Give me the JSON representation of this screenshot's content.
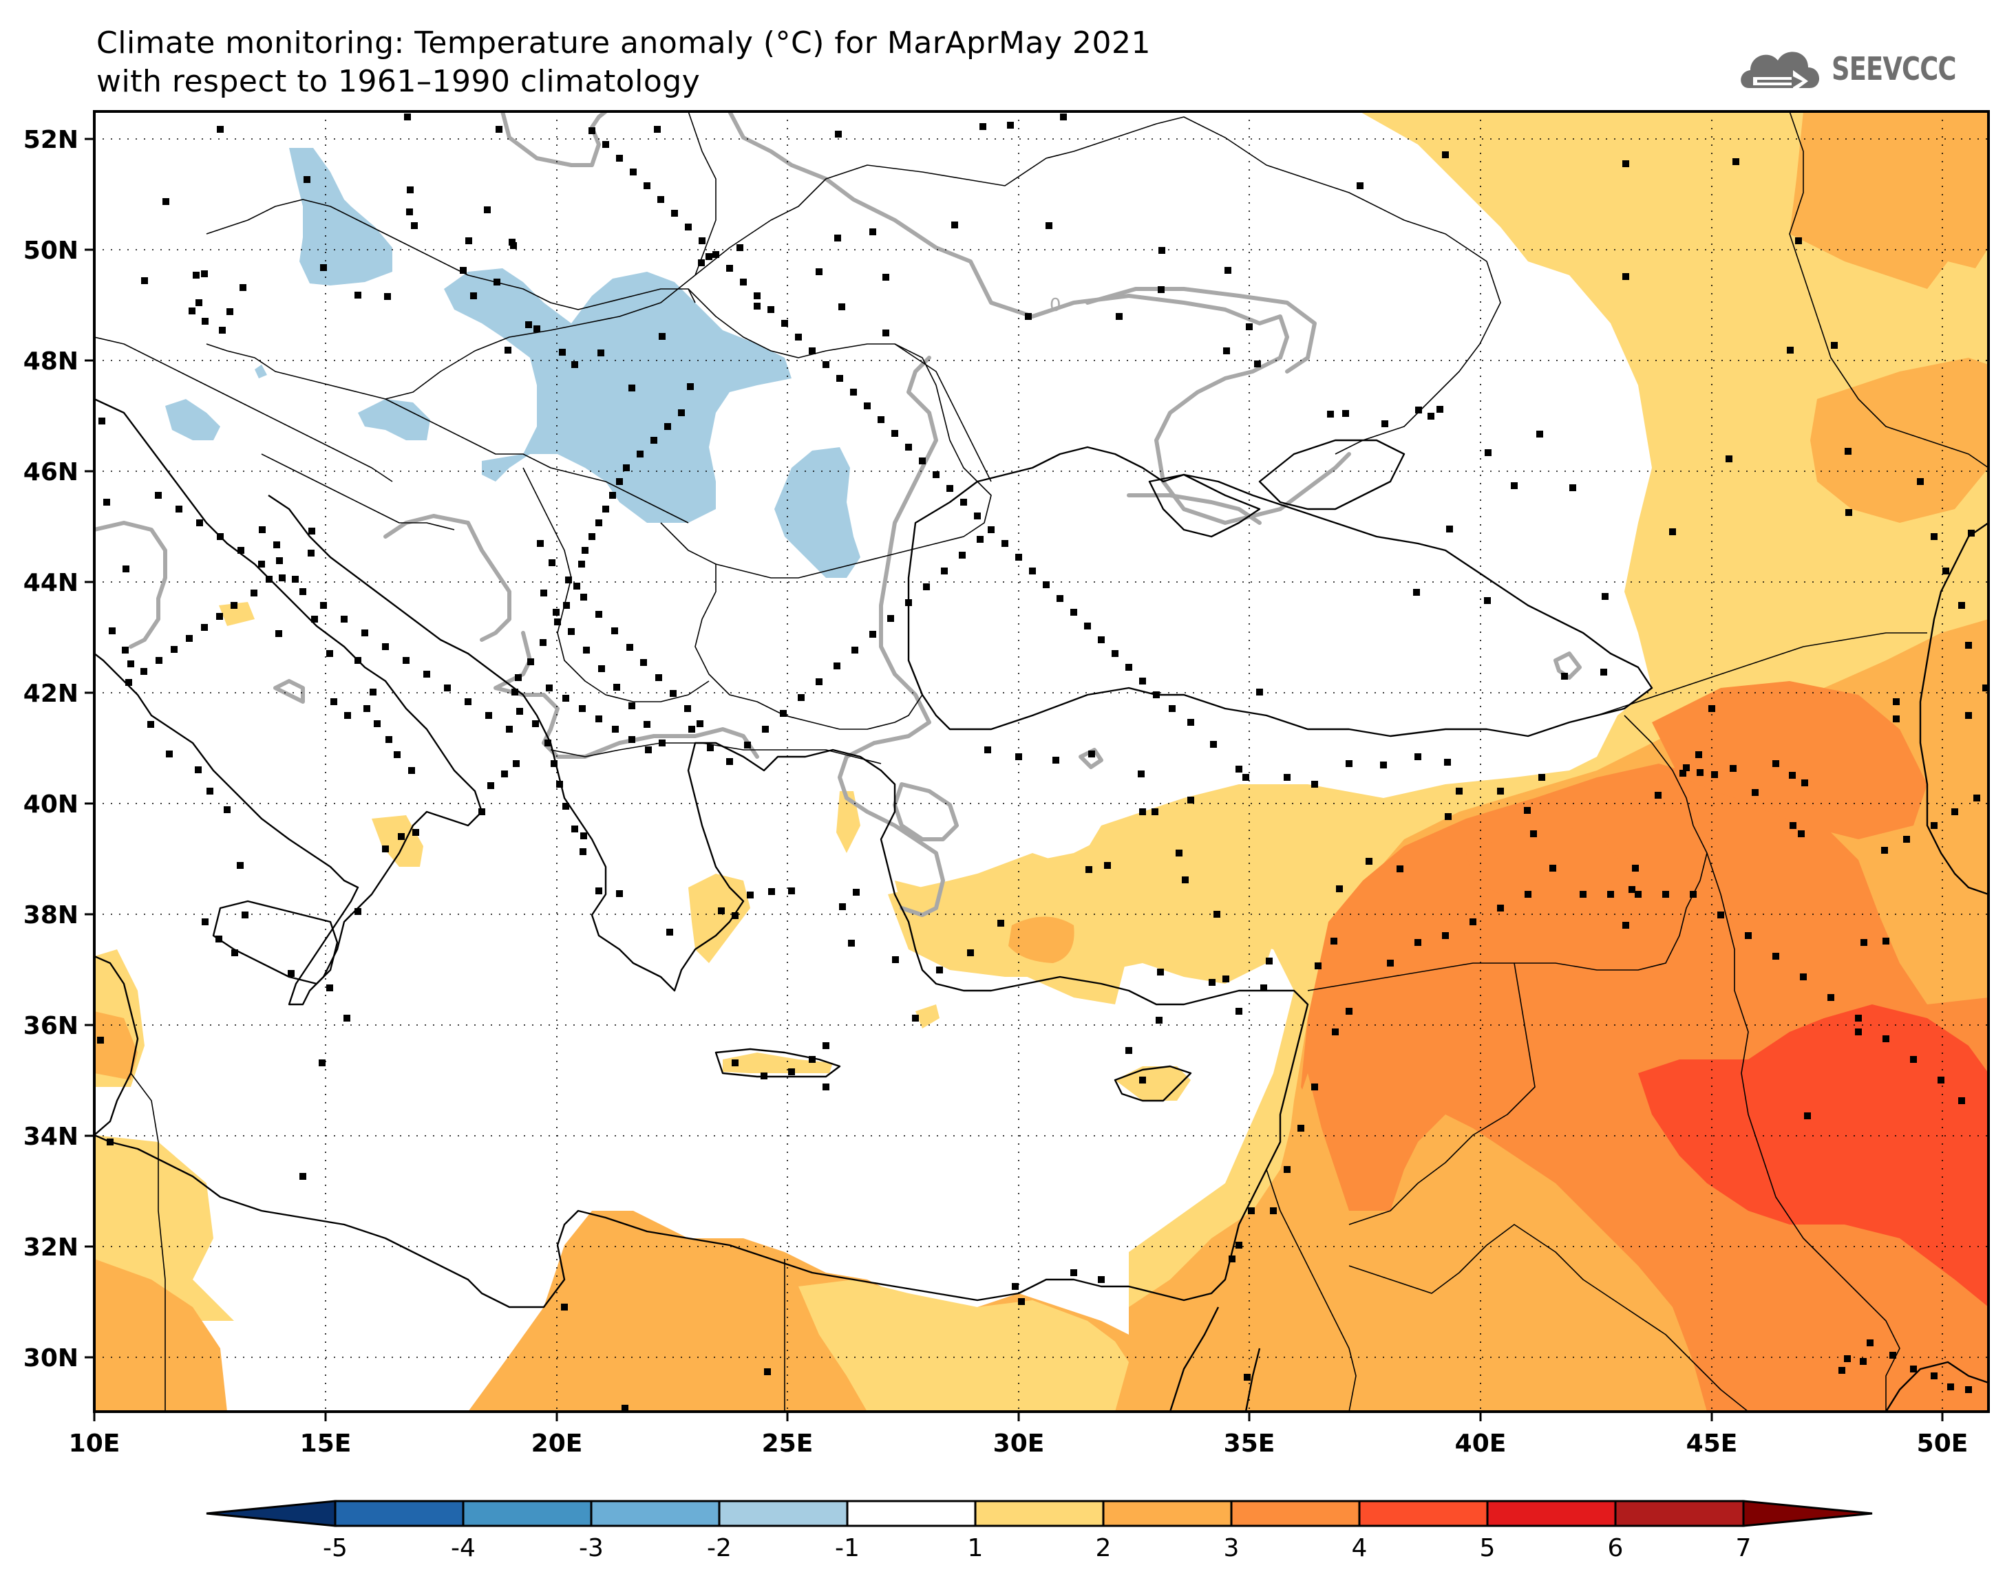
{
  "title": {
    "line1": "Climate monitoring: Temperature anomaly (°C) for MarAprMay 2021",
    "line2": "with respect to 1961–1990 climatology"
  },
  "logo": {
    "text": "SEEVCCC",
    "icon": "cloud-arrow-icon"
  },
  "map": {
    "lon_range": [
      10,
      51
    ],
    "lat_range": [
      29,
      52.5
    ],
    "lon_ticks": [
      "10E",
      "15E",
      "20E",
      "25E",
      "30E",
      "35E",
      "40E",
      "45E",
      "50E"
    ],
    "lat_ticks": [
      "52N",
      "50N",
      "48N",
      "46N",
      "44N",
      "42N",
      "40N",
      "38N",
      "36N",
      "34N",
      "32N",
      "30N"
    ],
    "contour_label": "0"
  },
  "colorbar": {
    "labels": [
      "-5",
      "-4",
      "-3",
      "-2",
      "-1",
      "1",
      "2",
      "3",
      "4",
      "5",
      "6",
      "7"
    ],
    "colors": [
      "#08306b",
      "#2166ac",
      "#4393c3",
      "#6baed6",
      "#a6cde2",
      "#ffffff",
      "#fed976",
      "#fdae4b",
      "#fc8d3c",
      "#fc4e2a",
      "#e31a1c",
      "#b01c1c",
      "#7f0000"
    ]
  },
  "colors": {
    "cold1": "#a6cde2",
    "warm1": "#fed976",
    "warm2": "#fdb24e",
    "warm3": "#fc8d3c",
    "warm4": "#fc4e2a",
    "contour": "#a8a8a8"
  }
}
